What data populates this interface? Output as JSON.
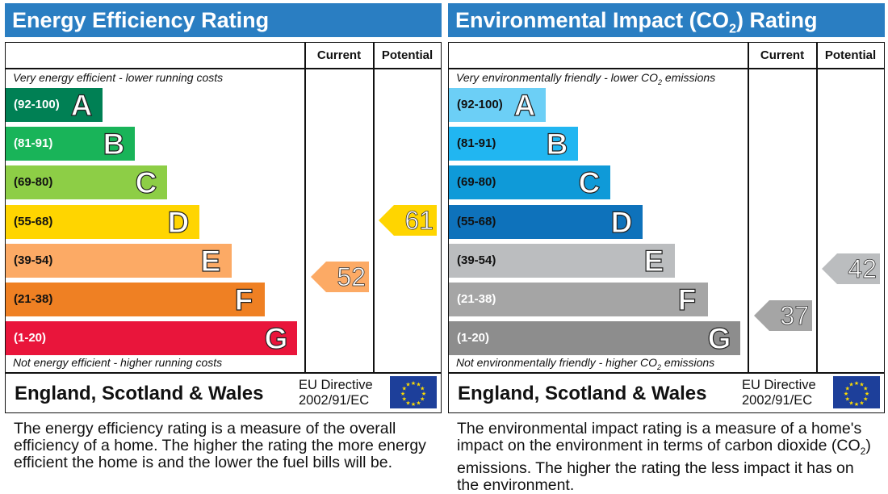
{
  "chart_data": [
    {
      "type": "bar",
      "title": "Energy Efficiency Rating",
      "column_headers": [
        "Current",
        "Potential"
      ],
      "top_note": "Very energy efficient - lower running costs",
      "bottom_note": "Not energy efficient - higher running costs",
      "bands": [
        {
          "letter": "A",
          "range": "(92-100)",
          "color": "#008054"
        },
        {
          "letter": "B",
          "range": "(81-91)",
          "color": "#19b459"
        },
        {
          "letter": "C",
          "range": "(69-80)",
          "color": "#8dce46"
        },
        {
          "letter": "D",
          "range": "(55-68)",
          "color": "#ffd500"
        },
        {
          "letter": "E",
          "range": "(39-54)",
          "color": "#fcaa65"
        },
        {
          "letter": "F",
          "range": "(21-38)",
          "color": "#ef8023"
        },
        {
          "letter": "G",
          "range": "(1-20)",
          "color": "#e9153b"
        }
      ],
      "current": {
        "value": 52,
        "color": "#fcaa65"
      },
      "potential": {
        "value": 61,
        "color": "#ffd500"
      },
      "footer": "England, Scotland & Wales",
      "directive_line1": "EU Directive",
      "directive_line2": "2002/91/EC",
      "description": "The energy efficiency rating is a measure of the overall efficiency of a home. The higher the rating the more energy efficient the home is and the lower the fuel bills will be."
    },
    {
      "type": "bar",
      "title_pre": "Environmental Impact (CO",
      "title_sub": "2",
      "title_post": ") Rating",
      "column_headers": [
        "Current",
        "Potential"
      ],
      "top_note_pre": "Very environmentally friendly - lower CO",
      "top_note_sub": "2",
      "top_note_post": " emissions",
      "bottom_note_pre": "Not environmentally friendly - higher CO",
      "bottom_note_sub": "2",
      "bottom_note_post": " emissions",
      "bands": [
        {
          "letter": "A",
          "range": "(92-100)",
          "color": "#6ccff6"
        },
        {
          "letter": "B",
          "range": "(81-91)",
          "color": "#21b6f1"
        },
        {
          "letter": "C",
          "range": "(69-80)",
          "color": "#0f9ad8"
        },
        {
          "letter": "D",
          "range": "(55-68)",
          "color": "#0e72bb"
        },
        {
          "letter": "E",
          "range": "(39-54)",
          "color": "#bbbdbf"
        },
        {
          "letter": "F",
          "range": "(21-38)",
          "color": "#a5a5a5"
        },
        {
          "letter": "G",
          "range": "(1-20)",
          "color": "#8d8d8d"
        }
      ],
      "current": {
        "value": 37,
        "color": "#a5a5a5"
      },
      "potential": {
        "value": 42,
        "color": "#bbbdbf"
      },
      "footer": "England, Scotland & Wales",
      "directive_line1": "EU Directive",
      "directive_line2": "2002/91/EC",
      "description_pre": "The environmental impact rating is a measure of a home's impact on the environment in terms of carbon dioxide (CO",
      "description_sub": "2",
      "description_post": ") emissions. The higher the rating the less impact it has on the environment."
    }
  ]
}
